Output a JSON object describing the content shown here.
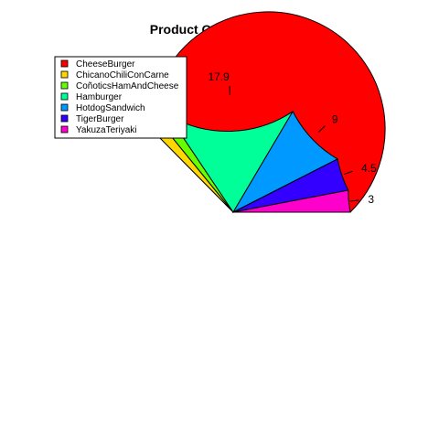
{
  "chart_data": {
    "type": "pie",
    "title": "Product Order Comaprison",
    "legend_position": "top-left",
    "slices": [
      {
        "name": "CheeseBurger",
        "label": "",
        "value": 62.6,
        "color": "#FF0000"
      },
      {
        "name": "ChicanoChiliConCarne",
        "label": "1.5",
        "value": 1.5,
        "color": "#FFD700"
      },
      {
        "name": "CoñoticsHamAndCheese",
        "label": "1.5",
        "value": 1.5,
        "color": "#66FF00"
      },
      {
        "name": "Hamburger",
        "label": "17.9",
        "value": 17.9,
        "color": "#00FF99"
      },
      {
        "name": "HotdogSandwich",
        "label": "9",
        "value": 9,
        "color": "#0099FF"
      },
      {
        "name": "TigerBurger",
        "label": "4.5",
        "value": 4.5,
        "color": "#3300FF"
      },
      {
        "name": "YakuzaTeriyaki",
        "label": "3",
        "value": 3,
        "color": "#FF00CC"
      }
    ]
  }
}
